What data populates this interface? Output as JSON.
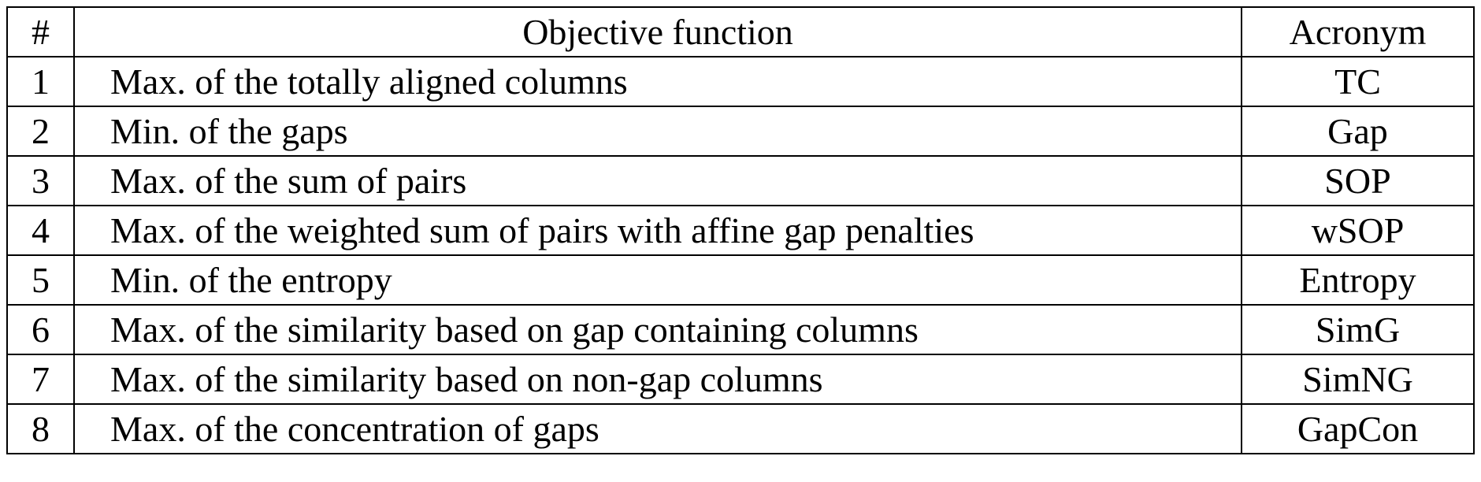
{
  "table": {
    "headers": {
      "number": "#",
      "objective": "Objective function",
      "acronym": "Acronym"
    },
    "rows": [
      {
        "number": "1",
        "objective": "Max. of the totally aligned columns",
        "acronym": "TC"
      },
      {
        "number": "2",
        "objective": "Min. of the gaps",
        "acronym": "Gap"
      },
      {
        "number": "3",
        "objective": "Max. of the sum of pairs",
        "acronym": "SOP"
      },
      {
        "number": "4",
        "objective": "Max. of the weighted sum of pairs with affine gap penalties",
        "acronym": "wSOP"
      },
      {
        "number": "5",
        "objective": "Min. of the entropy",
        "acronym": "Entropy"
      },
      {
        "number": "6",
        "objective": "Max. of the similarity based on gap containing columns",
        "acronym": "SimG"
      },
      {
        "number": "7",
        "objective": "Max. of the similarity based on non-gap columns",
        "acronym": "SimNG"
      },
      {
        "number": "8",
        "objective": "Max. of the concentration of gaps",
        "acronym": "GapCon"
      }
    ]
  }
}
